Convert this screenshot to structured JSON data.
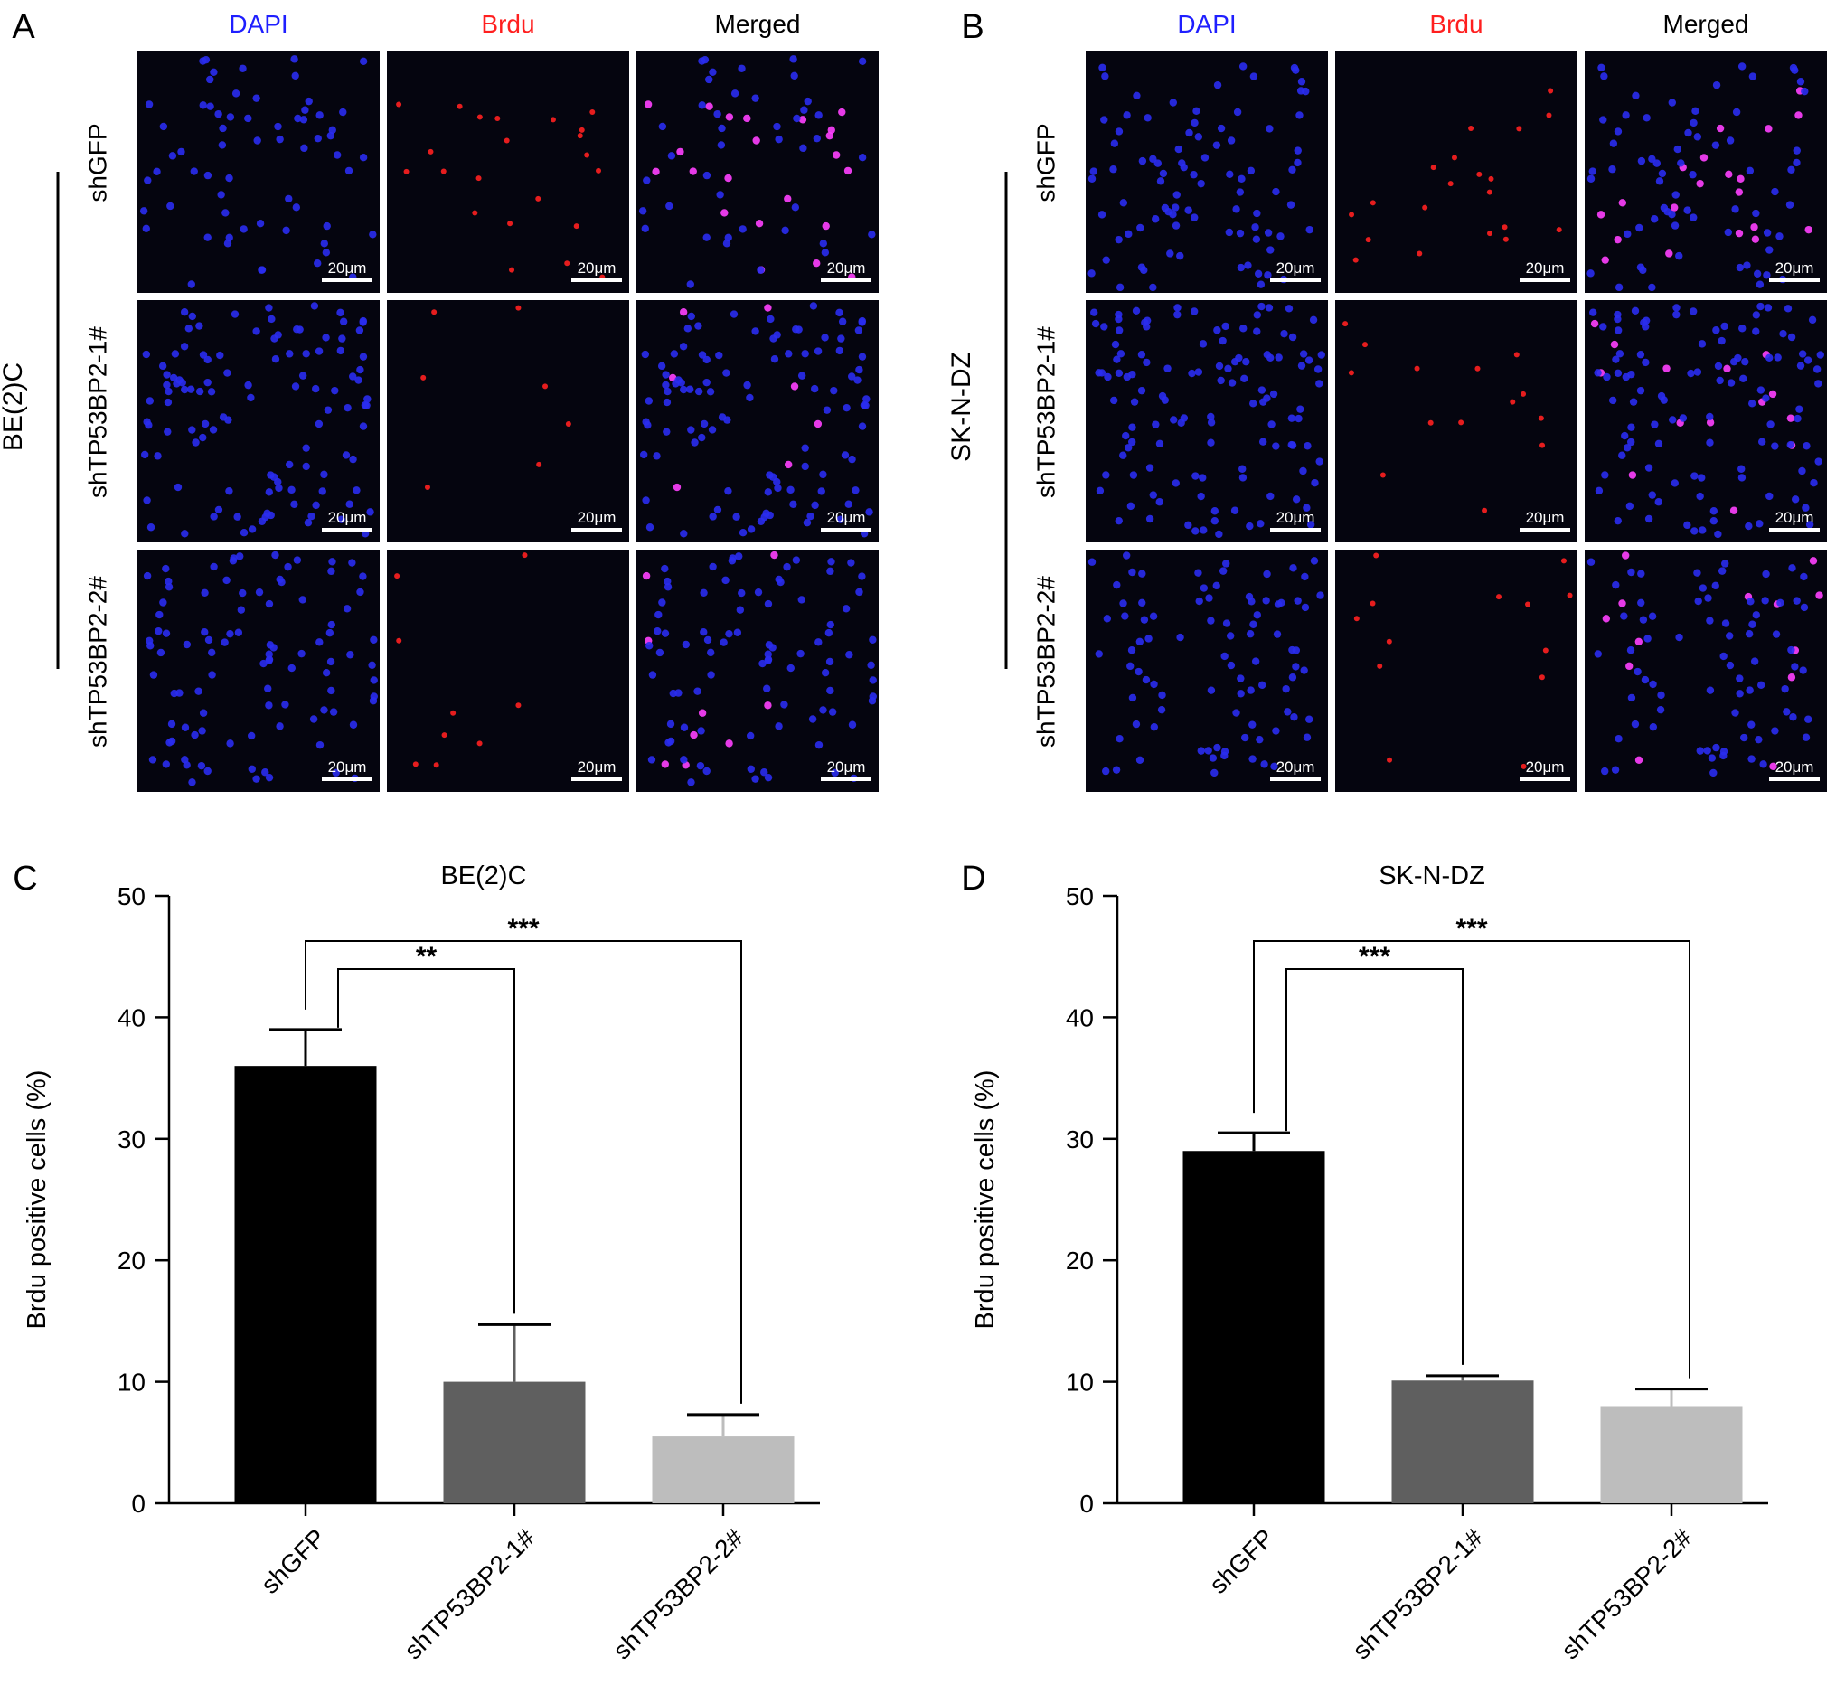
{
  "figure": {
    "panels": [
      {
        "letter": "A",
        "cell_line": "BE(2)C",
        "columns": [
          {
            "label": "DAPI",
            "color": "#1f1fff"
          },
          {
            "label": "Brdu",
            "color": "#ff1f1f"
          },
          {
            "label": "Merged",
            "color": "#000000"
          }
        ],
        "rows": [
          "shGFP",
          "shTP53BP2-1#",
          "shTP53BP2-2#"
        ],
        "scale_bar_label": "20μm"
      },
      {
        "letter": "B",
        "cell_line": "SK-N-DZ",
        "columns": [
          {
            "label": "DAPI",
            "color": "#1f1fff"
          },
          {
            "label": "Brdu",
            "color": "#ff1f1f"
          },
          {
            "label": "Merged",
            "color": "#000000"
          }
        ],
        "rows": [
          "shGFP",
          "shTP53BP2-1#",
          "shTP53BP2-2#"
        ],
        "scale_bar_label": "20μm"
      }
    ],
    "micrograph_density": [
      [
        [
          40,
          22,
          40
        ],
        [
          70,
          7,
          70
        ],
        [
          60,
          9,
          60
        ]
      ],
      [
        [
          55,
          20,
          55
        ],
        [
          75,
          14,
          75
        ],
        [
          55,
          13,
          55
        ]
      ]
    ],
    "dot_colors": {
      "dapi": "#2a2cf0",
      "brdu": "#ff2020",
      "merged_positive": "#ff40ff",
      "background": "#05050f"
    }
  },
  "chart_data": [
    {
      "panel_letter": "C",
      "type": "bar",
      "title": "BE(2)C",
      "categories": [
        "shGFP",
        "shTP53BP2-1#",
        "shTP53BP2-2#"
      ],
      "values": [
        36,
        10,
        5.5
      ],
      "errors": [
        3,
        4.7,
        1.8
      ],
      "bar_colors": [
        "#000000",
        "#5f5f5f",
        "#bdbdbd"
      ],
      "ylabel": "Brdu positive cells (%)",
      "xlabel": "",
      "ylim": [
        0,
        50
      ],
      "yticks": [
        0,
        10,
        20,
        30,
        40,
        50
      ],
      "significance": [
        {
          "from": 0,
          "to": 1,
          "label": "**"
        },
        {
          "from": 0,
          "to": 2,
          "label": "***"
        }
      ]
    },
    {
      "panel_letter": "D",
      "type": "bar",
      "title": "SK-N-DZ",
      "categories": [
        "shGFP",
        "shTP53BP2-1#",
        "shTP53BP2-2#"
      ],
      "values": [
        29,
        10.1,
        8
      ],
      "errors": [
        1.5,
        0.4,
        1.4
      ],
      "bar_colors": [
        "#000000",
        "#5f5f5f",
        "#bdbdbd"
      ],
      "ylabel": "Brdu positive cells (%)",
      "xlabel": "",
      "ylim": [
        0,
        50
      ],
      "yticks": [
        0,
        10,
        20,
        30,
        40,
        50
      ],
      "significance": [
        {
          "from": 0,
          "to": 1,
          "label": "***"
        },
        {
          "from": 0,
          "to": 2,
          "label": "***"
        }
      ]
    }
  ]
}
